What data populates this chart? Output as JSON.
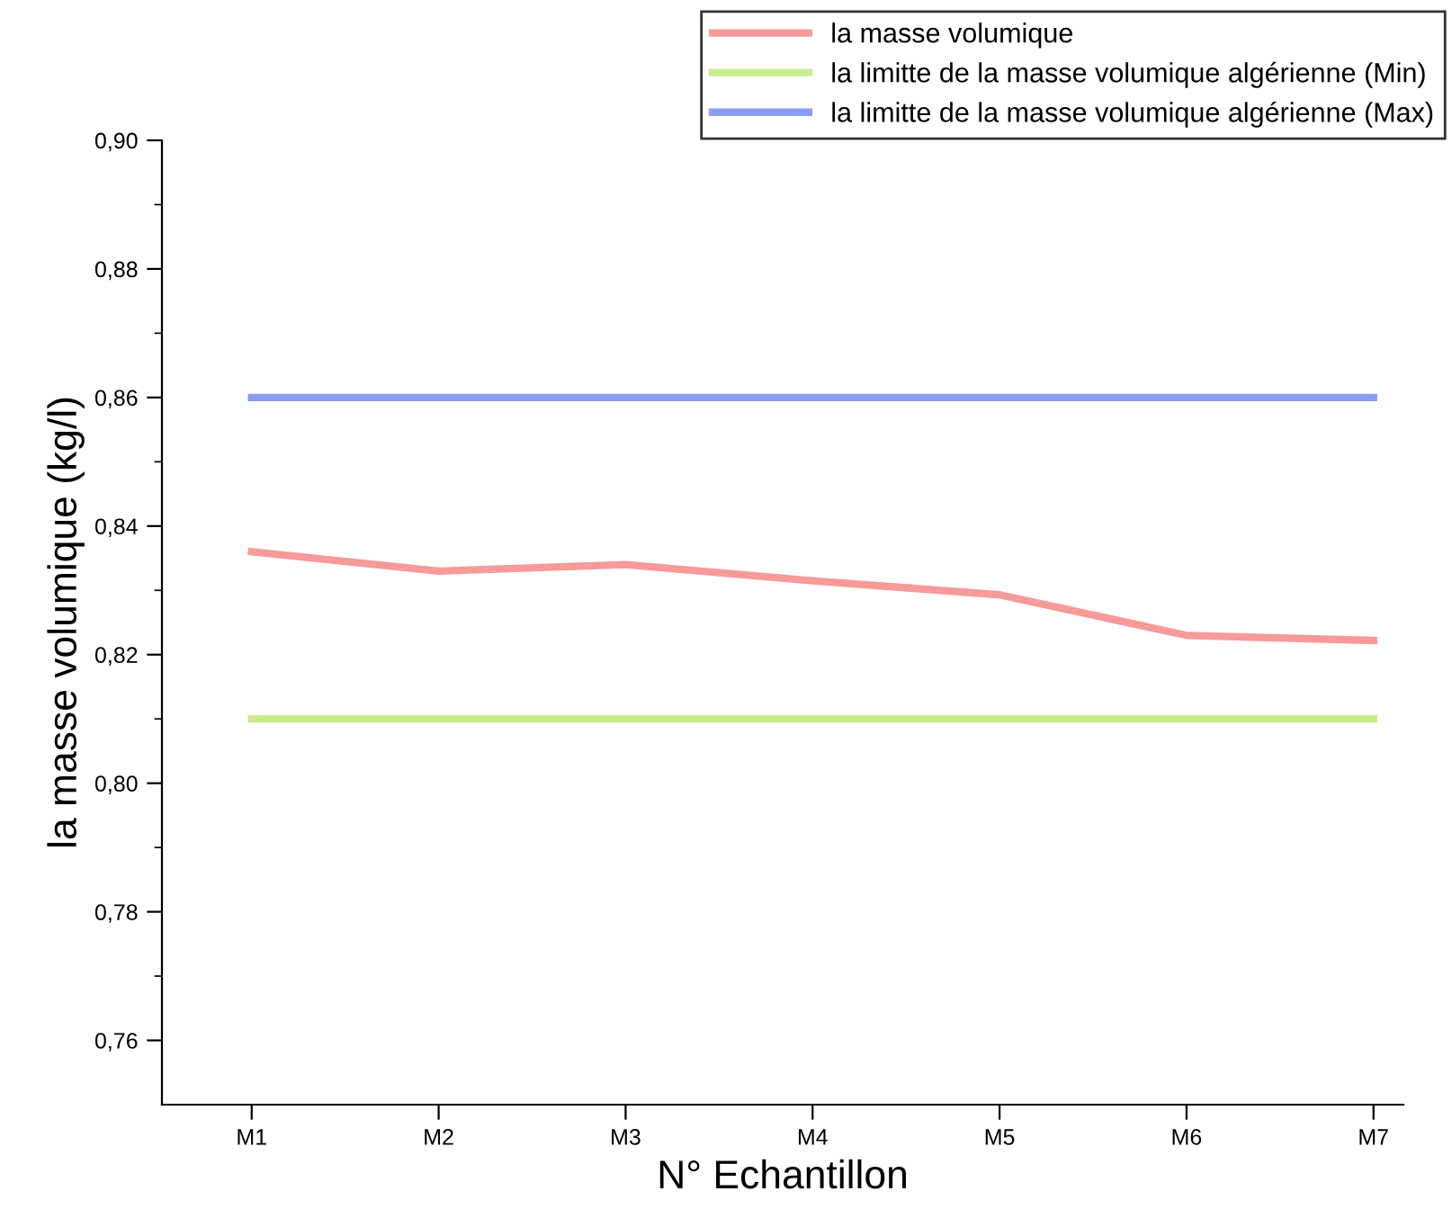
{
  "chart_data": {
    "type": "line",
    "xlabel": "N° Echantillon",
    "ylabel": "la masse volumique (kg/l)",
    "categories": [
      "M1",
      "M2",
      "M3",
      "M4",
      "M5",
      "M6",
      "M7"
    ],
    "series": [
      {
        "name": "la masse volumique",
        "color": "#f79a9a",
        "values": [
          0.836,
          0.833,
          0.834,
          0.8315,
          0.8293,
          0.823,
          0.8222
        ]
      },
      {
        "name": "la limitte de la masse volumique algérienne (Min)",
        "color": "#c8ec8c",
        "values": [
          0.81,
          0.81,
          0.81,
          0.81,
          0.81,
          0.81,
          0.81
        ]
      },
      {
        "name": "la limitte de la masse volumique algérienne (Max)",
        "color": "#8c9cf4",
        "values": [
          0.86,
          0.86,
          0.86,
          0.86,
          0.86,
          0.86,
          0.86
        ]
      }
    ],
    "ylim": [
      0.75,
      0.9
    ],
    "yticks": [
      {
        "value": 0.76,
        "label": "0,76"
      },
      {
        "value": 0.77,
        "label": null
      },
      {
        "value": 0.78,
        "label": "0,78"
      },
      {
        "value": 0.79,
        "label": null
      },
      {
        "value": 0.8,
        "label": "0,80"
      },
      {
        "value": 0.81,
        "label": null
      },
      {
        "value": 0.82,
        "label": "0,82"
      },
      {
        "value": 0.83,
        "label": null
      },
      {
        "value": 0.84,
        "label": "0,84"
      },
      {
        "value": 0.85,
        "label": null
      },
      {
        "value": 0.86,
        "label": "0,86"
      },
      {
        "value": 0.87,
        "label": null
      },
      {
        "value": 0.88,
        "label": "0,88"
      },
      {
        "value": 0.89,
        "label": null
      },
      {
        "value": 0.9,
        "label": "0,90"
      }
    ],
    "grid": false,
    "legend": "top right",
    "marker": "none",
    "line_style": "solid"
  }
}
